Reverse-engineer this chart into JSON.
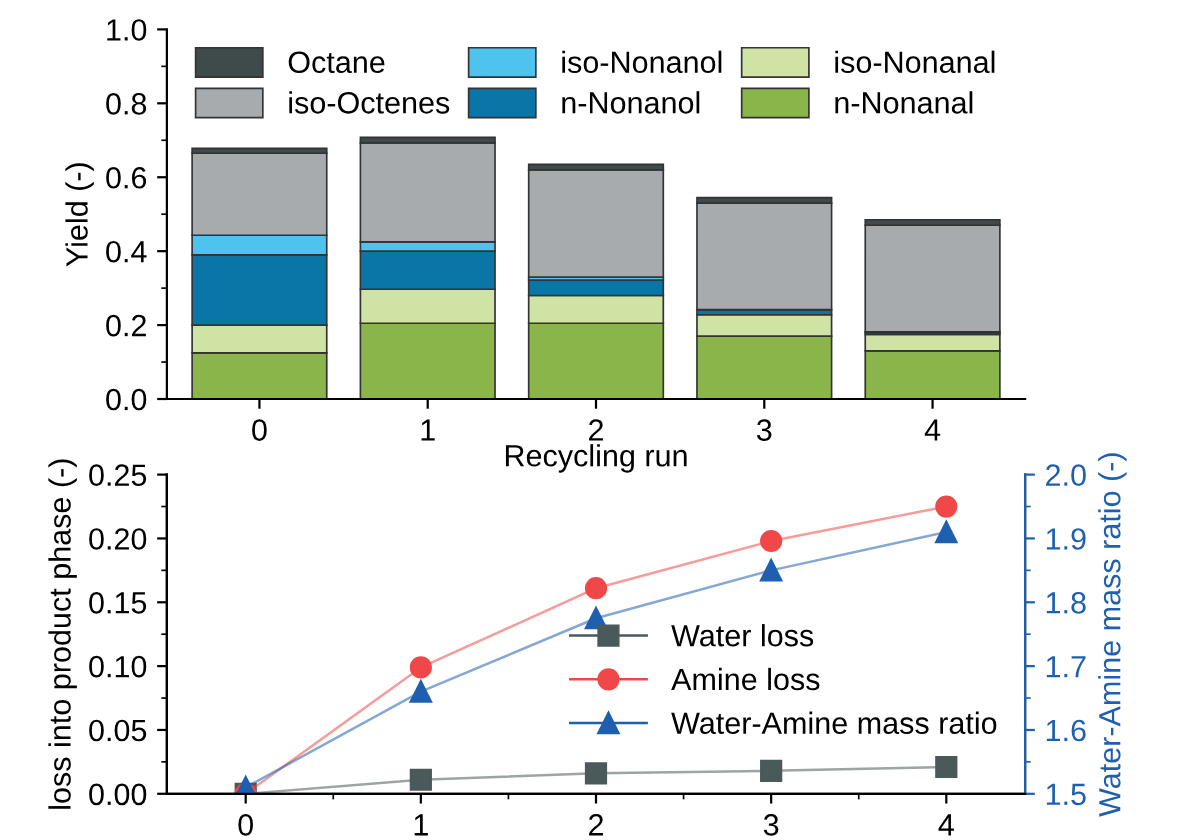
{
  "chart_data": [
    {
      "type": "bar",
      "stacked": true,
      "xlabel": "Recycling run",
      "ylabel": "Yield (-)",
      "categories": [
        "0",
        "1",
        "2",
        "3",
        "4"
      ],
      "ylim": [
        0,
        1.0
      ],
      "yticks": [
        {
          "value": 0,
          "label": "0.0"
        },
        0.2,
        0.4,
        0.6,
        0.8,
        {
          "value": 1.0,
          "label": "1.0"
        }
      ],
      "legend": "top",
      "grid": false,
      "series": [
        {
          "name": "n-Nonanal",
          "color": "#8ab54a",
          "values": [
            0.125,
            0.205,
            0.205,
            0.17,
            0.13
          ]
        },
        {
          "name": "iso-Nonanal",
          "color": "#cfe3a5",
          "values": [
            0.075,
            0.092,
            0.075,
            0.058,
            0.045
          ]
        },
        {
          "name": "n-Nonanol",
          "color": "#0a76a8",
          "values": [
            0.19,
            0.103,
            0.042,
            0.014,
            0.005
          ]
        },
        {
          "name": "iso-Nonanol",
          "color": "#4dc3ee",
          "values": [
            0.053,
            0.025,
            0.008,
            null,
            0.002
          ]
        },
        {
          "name": "iso-Octenes",
          "color": "#a7abae",
          "values": [
            0.222,
            0.268,
            0.29,
            0.288,
            0.288
          ]
        },
        {
          "name": "Octane",
          "color": "#3f4a4a",
          "values": [
            0.013,
            0.015,
            0.015,
            0.015,
            0.015
          ]
        }
      ]
    },
    {
      "type": "line",
      "ylabel": "loss into product phase (-)",
      "y2label": "Water-Amine mass ratio (-)",
      "x": [
        0,
        1,
        2,
        3,
        4
      ],
      "xlim": [
        -0.45,
        4.45
      ],
      "xticks": [
        0,
        1,
        2,
        3,
        4
      ],
      "ylim": [
        0,
        0.25
      ],
      "yticks": [
        {
          "value": 0,
          "label": "0.00"
        },
        0.05,
        {
          "value": 0.1,
          "label": "0.10"
        },
        0.15,
        {
          "value": 0.2,
          "label": "0.20"
        },
        0.25
      ],
      "y2lim": [
        1.5,
        2.0
      ],
      "y2ticks": [
        1.5,
        1.6,
        1.7,
        1.8,
        1.9,
        {
          "value": 2.0,
          "label": "2.0"
        }
      ],
      "legend": "right",
      "grid": false,
      "series": [
        {
          "name": "Water loss",
          "color": "#4a5a5a",
          "marker": "square",
          "values": [
            0.0,
            0.011,
            0.016,
            0.018,
            0.021
          ]
        },
        {
          "name": "Amine loss",
          "color": "#f04848",
          "marker": "circle",
          "values": [
            0.0,
            0.099,
            0.161,
            0.198,
            0.225
          ]
        },
        {
          "name": "Water-Amine mass ratio",
          "color": "#1f5fb0",
          "marker": "triangle",
          "axis": "y2",
          "values": [
            1.51,
            1.66,
            1.775,
            1.85,
            1.91
          ]
        }
      ]
    }
  ]
}
